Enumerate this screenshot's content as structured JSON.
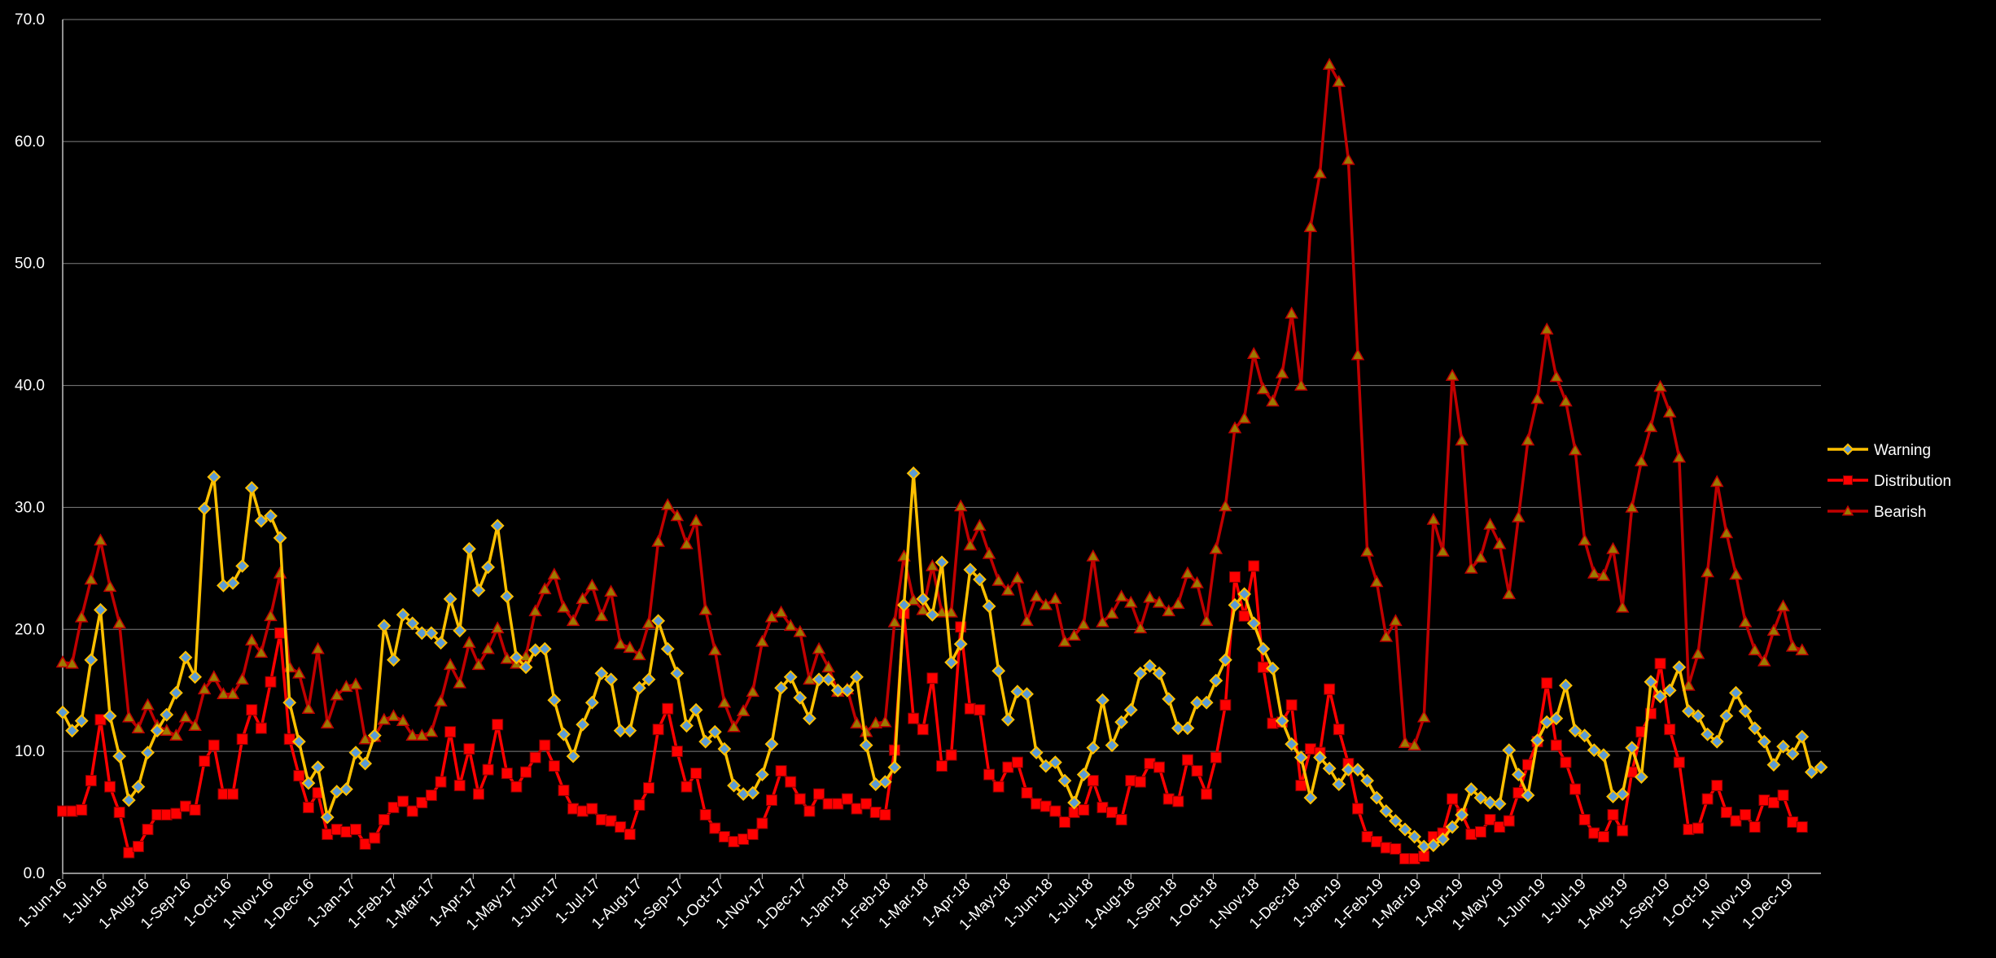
{
  "chart_data": {
    "type": "line",
    "title": "",
    "xlabel": "",
    "ylabel": "",
    "ylim": [
      0,
      70
    ],
    "y_ticks": [
      "0.0",
      "10.0",
      "20.0",
      "30.0",
      "40.0",
      "50.0",
      "60.0",
      "70.0"
    ],
    "x_start": "1-Jun-16",
    "x_interval": "weekly",
    "x_ticks": [
      "1-Jun-16",
      "1-Jul-16",
      "1-Aug-16",
      "1-Sep-16",
      "1-Oct-16",
      "1-Nov-16",
      "1-Dec-16",
      "1-Jan-17",
      "1-Feb-17",
      "1-Mar-17",
      "1-Apr-17",
      "1-May-17",
      "1-Jun-17",
      "1-Jul-17",
      "1-Aug-17",
      "1-Sep-17",
      "1-Oct-17",
      "1-Nov-17",
      "1-Dec-17",
      "1-Jan-18",
      "1-Feb-18",
      "1-Mar-18",
      "1-Apr-18",
      "1-May-18",
      "1-Jun-18",
      "1-Jul-18",
      "1-Aug-18",
      "1-Sep-18",
      "1-Oct-18",
      "1-Nov-18",
      "1-Dec-18",
      "1-Jan-19",
      "1-Feb-19",
      "1-Mar-19",
      "1-Apr-19",
      "1-May-19",
      "1-Jun-19",
      "1-Jul-19",
      "1-Aug-19",
      "1-Sep-19",
      "1-Oct-19",
      "1-Nov-19",
      "1-Dec-19"
    ],
    "grid": true,
    "legend_position": "right",
    "series": [
      {
        "name": "Warning",
        "color": "#FFC000",
        "marker": "diamond",
        "values": [
          13.2,
          11.7,
          12.5,
          17.5,
          21.6,
          12.9,
          9.6,
          6.0,
          7.1,
          9.9,
          11.7,
          13.0,
          14.8,
          17.7,
          16.1,
          29.9,
          32.5,
          23.6,
          23.8,
          25.2,
          31.6,
          28.9,
          29.3,
          27.5,
          14.0,
          10.8,
          7.4,
          8.7,
          4.6,
          6.7,
          6.9,
          9.9,
          9.0,
          11.3,
          20.3,
          17.5,
          21.2,
          20.5,
          19.7,
          19.7,
          18.9,
          22.5,
          19.9,
          26.6,
          23.2,
          25.1,
          28.5,
          22.7,
          17.7,
          16.9,
          18.3,
          18.4,
          14.2,
          11.4,
          9.6,
          12.2,
          14.0,
          16.4,
          15.9,
          11.7,
          11.7,
          15.2,
          15.9,
          20.7,
          18.4,
          16.4,
          12.1,
          13.4,
          10.8,
          11.6,
          10.2,
          7.2,
          6.5,
          6.6,
          8.1,
          10.6,
          15.2,
          16.1,
          14.4,
          12.7,
          15.9,
          15.9,
          15.0,
          15.0,
          16.1,
          10.5,
          7.3,
          7.5,
          8.7,
          22.0,
          32.8,
          22.5,
          21.2,
          25.5,
          17.3,
          18.8,
          24.9,
          24.1,
          21.9,
          16.6,
          12.6,
          14.9,
          14.7,
          9.9,
          8.8,
          9.1,
          7.6,
          5.8,
          8.1,
          10.3,
          14.2,
          10.5,
          12.4,
          13.4,
          16.4,
          17.0,
          16.4,
          14.3,
          11.9,
          11.9,
          14.0,
          14.0,
          15.8,
          17.5,
          22.0,
          22.9,
          20.5,
          18.4,
          16.8,
          12.5,
          10.6,
          9.5,
          6.2,
          9.5,
          8.6,
          7.3,
          8.5,
          8.5,
          7.6,
          6.2,
          5.1,
          4.3,
          3.6,
          3.0,
          2.2,
          2.3,
          2.8,
          3.8,
          4.8,
          6.9,
          6.2,
          5.8,
          5.7,
          10.1,
          8.1,
          6.4,
          10.9,
          12.4,
          12.7,
          15.4,
          11.7,
          11.3,
          10.1,
          9.7,
          6.3,
          6.5,
          10.3,
          7.9,
          15.7,
          14.5,
          15.0,
          16.9,
          13.3,
          12.9,
          11.4,
          10.8,
          12.9,
          14.8,
          13.3,
          11.9,
          10.8,
          8.9,
          10.4,
          9.8,
          11.2,
          8.3,
          8.7
        ]
      },
      {
        "name": "Distribution",
        "color": "#FF0000",
        "marker": "square",
        "values": [
          5.1,
          5.1,
          5.2,
          7.6,
          12.6,
          7.1,
          5.0,
          1.7,
          2.2,
          3.6,
          4.8,
          4.8,
          4.9,
          5.5,
          5.2,
          9.2,
          10.5,
          6.5,
          6.5,
          11.0,
          13.4,
          11.9,
          15.7,
          19.7,
          11.0,
          8.0,
          5.4,
          6.6,
          3.2,
          3.6,
          3.4,
          3.6,
          2.4,
          2.9,
          4.4,
          5.4,
          5.9,
          5.1,
          5.8,
          6.4,
          7.5,
          11.6,
          7.2,
          10.2,
          6.5,
          8.5,
          12.2,
          8.2,
          7.1,
          8.3,
          9.5,
          10.5,
          8.8,
          6.8,
          5.3,
          5.1,
          5.3,
          4.4,
          4.3,
          3.8,
          3.2,
          5.6,
          7.0,
          11.8,
          13.5,
          10.0,
          7.1,
          8.2,
          4.8,
          3.7,
          3.0,
          2.6,
          2.8,
          3.2,
          4.1,
          6.0,
          8.4,
          7.5,
          6.1,
          5.1,
          6.5,
          5.7,
          5.7,
          6.1,
          5.3,
          5.7,
          5.0,
          4.8,
          10.1,
          21.3,
          12.7,
          11.8,
          16.0,
          8.8,
          9.7,
          20.2,
          13.5,
          13.4,
          8.1,
          7.1,
          8.7,
          9.1,
          6.6,
          5.7,
          5.5,
          5.1,
          4.2,
          5.0,
          5.2,
          7.6,
          5.4,
          5.0,
          4.4,
          7.6,
          7.5,
          9.0,
          8.7,
          6.1,
          5.9,
          9.3,
          8.4,
          6.5,
          9.5,
          13.8,
          24.3,
          21.1,
          25.2,
          16.9,
          12.3,
          12.4,
          13.8,
          7.2,
          10.2,
          9.9,
          15.1,
          11.8,
          9.0,
          5.3,
          3.0,
          2.6,
          2.1,
          2.0,
          1.2,
          1.2,
          1.4,
          3.0,
          3.3,
          6.1,
          4.9,
          3.2,
          3.4,
          4.4,
          3.8,
          4.3,
          6.6,
          8.9,
          10.8,
          15.6,
          10.5,
          9.1,
          6.9,
          4.4,
          3.3,
          3.0,
          4.8,
          3.5,
          8.3,
          11.6,
          13.1,
          17.2,
          11.8,
          9.1,
          3.6,
          3.7,
          6.1,
          7.2,
          5.0,
          4.3,
          4.8,
          3.8,
          6.0,
          5.8,
          6.4,
          4.2,
          3.8
        ]
      },
      {
        "name": "Bearish",
        "color": "#C00000",
        "marker": "triangle",
        "values": [
          17.3,
          17.2,
          21.0,
          24.1,
          27.3,
          23.5,
          20.5,
          12.8,
          11.9,
          13.8,
          12.1,
          11.7,
          11.3,
          12.8,
          12.1,
          15.1,
          16.1,
          14.7,
          14.7,
          15.9,
          19.1,
          18.1,
          21.1,
          24.6,
          16.9,
          16.4,
          13.5,
          18.4,
          12.3,
          14.6,
          15.3,
          15.5,
          11.0,
          11.2,
          12.6,
          12.9,
          12.5,
          11.3,
          11.3,
          11.6,
          14.1,
          17.1,
          15.6,
          18.9,
          17.1,
          18.4,
          20.1,
          17.6,
          17.2,
          17.8,
          21.5,
          23.3,
          24.5,
          21.8,
          20.7,
          22.5,
          23.6,
          21.1,
          23.1,
          18.8,
          18.5,
          17.9,
          20.5,
          27.2,
          30.2,
          29.3,
          27.0,
          28.9,
          21.6,
          18.3,
          14.0,
          12.0,
          13.3,
          14.9,
          19.0,
          21.0,
          21.4,
          20.3,
          19.8,
          15.9,
          18.4,
          16.9,
          14.9,
          15.1,
          12.3,
          11.6,
          12.3,
          12.4,
          20.6,
          26.0,
          22.4,
          21.6,
          25.2,
          21.4,
          21.4,
          30.1,
          26.9,
          28.5,
          26.2,
          24.0,
          23.2,
          24.2,
          20.7,
          22.7,
          22.0,
          22.5,
          19.0,
          19.5,
          20.4,
          26.0,
          20.6,
          21.3,
          22.7,
          22.2,
          20.1,
          22.6,
          22.2,
          21.5,
          22.1,
          24.6,
          23.8,
          20.7,
          26.6,
          30.1,
          36.5,
          37.3,
          42.6,
          39.7,
          38.7,
          41.0,
          45.9,
          40.0,
          53.0,
          57.4,
          66.3,
          64.9,
          58.5,
          42.5,
          26.4,
          23.9,
          19.4,
          20.7,
          10.7,
          10.5,
          12.8,
          29.0,
          26.4,
          40.8,
          35.5,
          25.0,
          25.9,
          28.6,
          27.0,
          22.9,
          29.2,
          35.5,
          38.9,
          44.6,
          40.7,
          38.7,
          34.7,
          27.3,
          24.6,
          24.4,
          26.6,
          21.8,
          30.0,
          33.8,
          36.6,
          39.9,
          37.8,
          34.1,
          15.4,
          18.0,
          24.7,
          32.1,
          27.9,
          24.5,
          20.6,
          18.3,
          17.4,
          19.9,
          21.9,
          18.6,
          18.3
        ]
      }
    ]
  }
}
